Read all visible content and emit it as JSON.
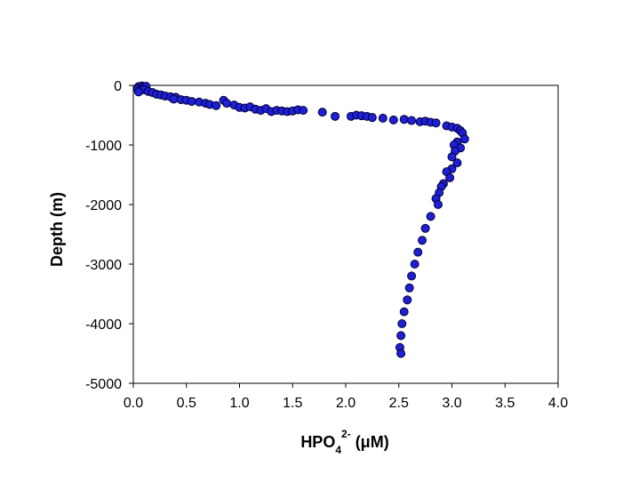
{
  "chart_data": {
    "type": "scatter",
    "title": "",
    "xlabel": "HPO42- (μM)",
    "xlabel_parts": {
      "base": "HPO",
      "sub": "4",
      "sup": "2-",
      "unit": " (μM)"
    },
    "ylabel": "Depth (m)",
    "xlim": [
      0.0,
      4.0
    ],
    "ylim": [
      -5000,
      0
    ],
    "x_ticks": [
      0.0,
      0.5,
      1.0,
      1.5,
      2.0,
      2.5,
      3.0,
      3.5,
      4.0
    ],
    "x_tick_labels": [
      "0.0",
      "0.5",
      "1.0",
      "1.5",
      "2.0",
      "2.5",
      "3.0",
      "3.5",
      "4.0"
    ],
    "y_ticks": [
      0,
      -1000,
      -2000,
      -3000,
      -4000,
      -5000
    ],
    "y_tick_labels": [
      "0",
      "-1000",
      "-2000",
      "-3000",
      "-4000",
      "-5000"
    ],
    "grid": false,
    "legend": "none",
    "marker_color": "#1f1fd6",
    "marker_edge": "#000033",
    "points": [
      {
        "x": 0.05,
        "y": -20
      },
      {
        "x": 0.08,
        "y": -10
      },
      {
        "x": 0.1,
        "y": -30
      },
      {
        "x": 0.12,
        "y": -15
      },
      {
        "x": 0.04,
        "y": -60
      },
      {
        "x": 0.06,
        "y": -90
      },
      {
        "x": 0.1,
        "y": -70
      },
      {
        "x": 0.14,
        "y": -100
      },
      {
        "x": 0.05,
        "y": -110
      },
      {
        "x": 0.18,
        "y": -120
      },
      {
        "x": 0.22,
        "y": -150
      },
      {
        "x": 0.26,
        "y": -160
      },
      {
        "x": 0.3,
        "y": -180
      },
      {
        "x": 0.35,
        "y": -190
      },
      {
        "x": 0.4,
        "y": -200
      },
      {
        "x": 0.38,
        "y": -230
      },
      {
        "x": 0.45,
        "y": -240
      },
      {
        "x": 0.5,
        "y": -250
      },
      {
        "x": 0.55,
        "y": -270
      },
      {
        "x": 0.62,
        "y": -280
      },
      {
        "x": 0.68,
        "y": -300
      },
      {
        "x": 0.72,
        "y": -320
      },
      {
        "x": 0.78,
        "y": -340
      },
      {
        "x": 0.85,
        "y": -250
      },
      {
        "x": 0.88,
        "y": -300
      },
      {
        "x": 0.95,
        "y": -330
      },
      {
        "x": 1.0,
        "y": -370
      },
      {
        "x": 1.05,
        "y": -380
      },
      {
        "x": 1.1,
        "y": -360
      },
      {
        "x": 1.15,
        "y": -400
      },
      {
        "x": 1.2,
        "y": -420
      },
      {
        "x": 1.25,
        "y": -390
      },
      {
        "x": 1.3,
        "y": -440
      },
      {
        "x": 1.35,
        "y": -420
      },
      {
        "x": 1.4,
        "y": -430
      },
      {
        "x": 1.45,
        "y": -440
      },
      {
        "x": 1.5,
        "y": -430
      },
      {
        "x": 1.55,
        "y": -410
      },
      {
        "x": 1.6,
        "y": -420
      },
      {
        "x": 1.78,
        "y": -450
      },
      {
        "x": 1.9,
        "y": -520
      },
      {
        "x": 2.05,
        "y": -520
      },
      {
        "x": 2.1,
        "y": -500
      },
      {
        "x": 2.15,
        "y": -510
      },
      {
        "x": 2.2,
        "y": -520
      },
      {
        "x": 2.25,
        "y": -540
      },
      {
        "x": 2.35,
        "y": -550
      },
      {
        "x": 2.45,
        "y": -580
      },
      {
        "x": 2.55,
        "y": -570
      },
      {
        "x": 2.62,
        "y": -590
      },
      {
        "x": 2.7,
        "y": -610
      },
      {
        "x": 2.75,
        "y": -600
      },
      {
        "x": 2.8,
        "y": -620
      },
      {
        "x": 2.85,
        "y": -630
      },
      {
        "x": 2.95,
        "y": -680
      },
      {
        "x": 3.0,
        "y": -700
      },
      {
        "x": 3.05,
        "y": -720
      },
      {
        "x": 3.08,
        "y": -760
      },
      {
        "x": 3.1,
        "y": -800
      },
      {
        "x": 3.12,
        "y": -900
      },
      {
        "x": 3.05,
        "y": -950
      },
      {
        "x": 3.02,
        "y": -1000
      },
      {
        "x": 3.08,
        "y": -1050
      },
      {
        "x": 3.03,
        "y": -1100
      },
      {
        "x": 3.0,
        "y": -1200
      },
      {
        "x": 3.05,
        "y": -1300
      },
      {
        "x": 3.0,
        "y": -1400
      },
      {
        "x": 2.95,
        "y": -1450
      },
      {
        "x": 2.98,
        "y": -1550
      },
      {
        "x": 2.92,
        "y": -1650
      },
      {
        "x": 2.9,
        "y": -1700
      },
      {
        "x": 2.88,
        "y": -1800
      },
      {
        "x": 2.85,
        "y": -1900
      },
      {
        "x": 2.87,
        "y": -2000
      },
      {
        "x": 2.8,
        "y": -2200
      },
      {
        "x": 2.75,
        "y": -2400
      },
      {
        "x": 2.72,
        "y": -2600
      },
      {
        "x": 2.68,
        "y": -2800
      },
      {
        "x": 2.65,
        "y": -3000
      },
      {
        "x": 2.62,
        "y": -3200
      },
      {
        "x": 2.6,
        "y": -3400
      },
      {
        "x": 2.58,
        "y": -3600
      },
      {
        "x": 2.55,
        "y": -3800
      },
      {
        "x": 2.53,
        "y": -4000
      },
      {
        "x": 2.52,
        "y": -4200
      },
      {
        "x": 2.51,
        "y": -4400
      },
      {
        "x": 2.52,
        "y": -4500
      }
    ]
  }
}
